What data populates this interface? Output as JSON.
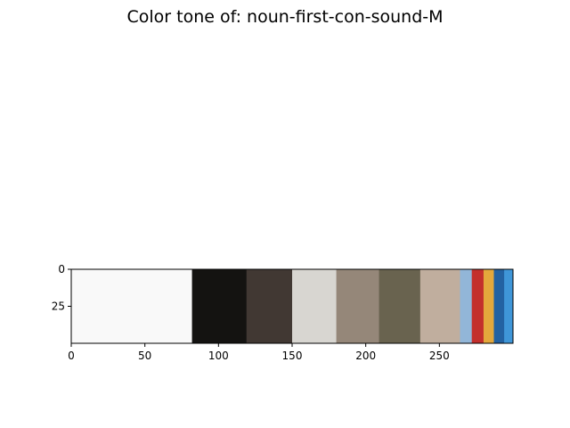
{
  "chart_data": {
    "type": "heatmap",
    "title": "Color tone of: noun-first-con-sound-M",
    "xlabel": "",
    "ylabel": "",
    "xlim": [
      0,
      300
    ],
    "ylim": [
      50,
      0
    ],
    "x_ticks": [
      0,
      50,
      100,
      150,
      200,
      250
    ],
    "y_ticks": [
      0,
      25
    ],
    "grid": false,
    "segments": [
      {
        "start": 0,
        "end": 82,
        "color": "#f9f9f9"
      },
      {
        "start": 82,
        "end": 119,
        "color": "#141311"
      },
      {
        "start": 119,
        "end": 150,
        "color": "#413833"
      },
      {
        "start": 150,
        "end": 180,
        "color": "#d8d6d1"
      },
      {
        "start": 180,
        "end": 209,
        "color": "#958779"
      },
      {
        "start": 209,
        "end": 237,
        "color": "#69634f"
      },
      {
        "start": 237,
        "end": 264,
        "color": "#c0ae9e"
      },
      {
        "start": 264,
        "end": 272,
        "color": "#92b6d8"
      },
      {
        "start": 272,
        "end": 280,
        "color": "#c3302c"
      },
      {
        "start": 280,
        "end": 287,
        "color": "#e4a83c"
      },
      {
        "start": 287,
        "end": 294,
        "color": "#2362a2"
      },
      {
        "start": 294,
        "end": 300,
        "color": "#3f96d8"
      }
    ]
  }
}
